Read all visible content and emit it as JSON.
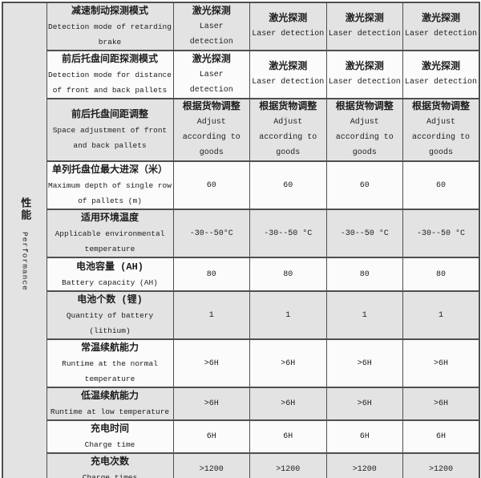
{
  "colors": {
    "row_shaded": "#e3e3e3",
    "row_plain": "#fbfbfb",
    "border": "#4f4f4f",
    "page_bg": "#ffffff"
  },
  "table": {
    "category": {
      "zh": "性能",
      "en": "Performance"
    },
    "rows": [
      {
        "label_zh": "减速制动探测模式",
        "label_en": "Detection mode of retarding\nbrake",
        "values": [
          [
            "激光探测",
            "Laser",
            "detection"
          ],
          [
            "激光探测",
            "Laser detection"
          ],
          [
            "激光探测",
            "Laser detection"
          ],
          [
            "激光探测",
            "Laser detection"
          ]
        ]
      },
      {
        "label_zh": "前后托盘间距探测模式",
        "label_en": "Detection mode for distance\nof front and back pallets",
        "values": [
          [
            "激光探测",
            "Laser",
            "detection"
          ],
          [
            "激光探测",
            "Laser detection"
          ],
          [
            "激光探测",
            "Laser detection"
          ],
          [
            "激光探测",
            "Laser detection"
          ]
        ]
      },
      {
        "label_zh": "前后托盘间距调整",
        "label_en": "Space adjustment of front\nand back pallets",
        "values": [
          [
            "根据货物调整",
            "Adjust",
            "according to",
            "goods"
          ],
          [
            "根据货物调整",
            "Adjust",
            "according to",
            "goods"
          ],
          [
            "根据货物调整",
            "Adjust",
            "according to",
            "goods"
          ],
          [
            "根据货物调整",
            "Adjust",
            "according to",
            "goods"
          ]
        ]
      },
      {
        "label_zh": "单列托盘位最大进深（米）",
        "label_en": "Maximum depth of single row\nof pallets (m)",
        "values": [
          [
            "60"
          ],
          [
            "60"
          ],
          [
            "60"
          ],
          [
            "60"
          ]
        ]
      },
      {
        "label_zh": "适用环境温度",
        "label_en": "Applicable environmental\ntemperature",
        "values": [
          [
            "-30--50°C"
          ],
          [
            "-30--50 °C"
          ],
          [
            "-30--50 °C"
          ],
          [
            "-30--50 °C"
          ]
        ]
      },
      {
        "label_zh": "电池容量 (AH)",
        "label_en": "Battery capacity (AH)",
        "values": [
          [
            "80"
          ],
          [
            "80"
          ],
          [
            "80"
          ],
          [
            "80"
          ]
        ]
      },
      {
        "label_zh": "电池个数 (锂)",
        "label_en": "Quantity of battery\n(lithium)",
        "values": [
          [
            "1"
          ],
          [
            "1"
          ],
          [
            "1"
          ],
          [
            "1"
          ]
        ]
      },
      {
        "label_zh": "常温续航能力",
        "label_en": "Runtime at the normal\ntemperature",
        "values": [
          [
            ">6H"
          ],
          [
            ">6H"
          ],
          [
            ">6H"
          ],
          [
            ">6H"
          ]
        ]
      },
      {
        "label_zh": "低温续航能力",
        "label_en": "Runtime at low temperature",
        "values": [
          [
            ">6H"
          ],
          [
            ">6H"
          ],
          [
            ">6H"
          ],
          [
            ">6H"
          ]
        ]
      },
      {
        "label_zh": "充电时间",
        "label_en": "Charge time",
        "values": [
          [
            "6H"
          ],
          [
            "6H"
          ],
          [
            "6H"
          ],
          [
            "6H"
          ]
        ]
      },
      {
        "label_zh": "充电次数",
        "label_en": "Charge times",
        "values": [
          [
            ">1200"
          ],
          [
            ">1200"
          ],
          [
            ">1200"
          ],
          [
            ">1200"
          ]
        ]
      }
    ]
  }
}
